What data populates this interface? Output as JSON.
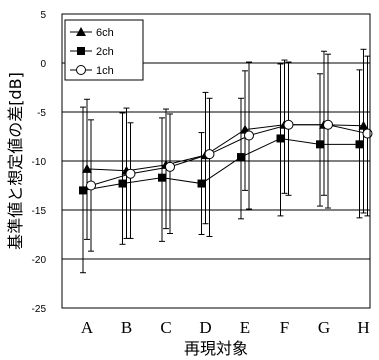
{
  "chart_data": {
    "type": "line",
    "categories": [
      "A",
      "B",
      "C",
      "D",
      "E",
      "F",
      "G",
      "H"
    ],
    "xlabel": "再現対象",
    "ylabel": "基準値と想定値の差[dB]",
    "ylim": [
      -25,
      5
    ],
    "yticks": [
      5,
      0,
      -5,
      -10,
      -15,
      -20,
      -25
    ],
    "grid": "horizontal",
    "legend_position": "top-left",
    "series": [
      {
        "name": "6ch",
        "marker": "triangle",
        "values": [
          -10.8,
          -11.0,
          -10.4,
          -9.4,
          -6.8,
          -6.3,
          -6.3,
          -6.4
        ],
        "upper": [
          -3.7,
          -4.6,
          -4.7,
          -3.0,
          -0.8,
          0.3,
          1.2,
          1.4
        ],
        "lower": [
          -18.0,
          -17.9,
          -16.9,
          -16.4,
          -13.0,
          -13.3,
          -13.5,
          -15.3
        ]
      },
      {
        "name": "2ch",
        "marker": "square",
        "values": [
          -13.0,
          -12.3,
          -11.7,
          -12.3,
          -9.6,
          -7.7,
          -8.3,
          -8.3
        ],
        "upper": [
          -4.5,
          -5.1,
          -5.6,
          -7.1,
          -3.6,
          -0.1,
          -1.1,
          -0.7
        ],
        "lower": [
          -21.4,
          -18.5,
          -18.2,
          -17.5,
          -15.9,
          -15.6,
          -14.6,
          -15.8
        ]
      },
      {
        "name": "1ch",
        "marker": "circle",
        "values": [
          -12.5,
          -11.3,
          -10.6,
          -9.3,
          -7.4,
          -6.3,
          -6.3,
          -7.2
        ],
        "upper": [
          -5.8,
          -6.1,
          -5.2,
          -3.6,
          0.1,
          0.1,
          0.9,
          0.7
        ],
        "lower": [
          -19.2,
          -17.9,
          -17.4,
          -17.7,
          -14.9,
          -13.5,
          -14.8,
          -15.6
        ]
      }
    ]
  }
}
